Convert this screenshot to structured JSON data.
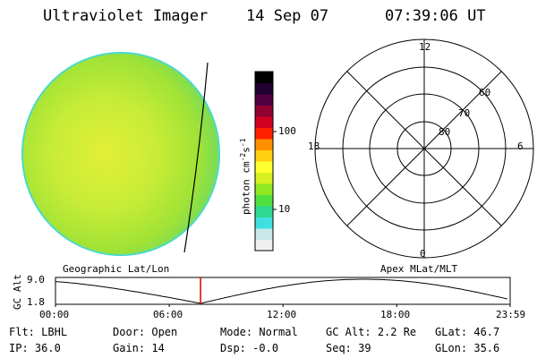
{
  "header": {
    "instrument": "Ultraviolet Imager",
    "date": "14 Sep 07",
    "time": "07:39:06 UT"
  },
  "colorbar": {
    "unit_label": "photon cm",
    "unit_sup1": "-2",
    "unit_s": "s",
    "unit_sup2": "-1",
    "ticks": [
      "100",
      "10"
    ],
    "colors": [
      "#f0f0f0",
      "#c8e8e8",
      "#40e0e0",
      "#30d890",
      "#50e040",
      "#90e820",
      "#d8f020",
      "#ffff30",
      "#ffd010",
      "#ff9000",
      "#ff2000",
      "#d00020",
      "#900030",
      "#500040",
      "#200030",
      "#000000"
    ]
  },
  "polar": {
    "mlt_labels": {
      "top": "12",
      "left": "18",
      "right": "6",
      "bottom": "0"
    },
    "lat_labels": [
      "60",
      "70",
      "80"
    ]
  },
  "timeline": {
    "left_title": "Geographic Lat/Lon",
    "right_title": "Apex MLat/MLT",
    "y_axis_label": "GC Alt",
    "y_ticks": [
      "9.0",
      "1.8"
    ],
    "x_ticks": [
      "00:00",
      "06:00",
      "12:00",
      "18:00",
      "23:59"
    ],
    "marker_time": "07:39",
    "marker_color": "#dd0000"
  },
  "info": {
    "flt_label": "Flt:",
    "flt_value": "LBHL",
    "ip_label": "IP:",
    "ip_value": "36.0",
    "door_label": "Door:",
    "door_value": "Open",
    "gain_label": "Gain:",
    "gain_value": "14",
    "mode_label": "Mode:",
    "mode_value": "Normal",
    "dsp_label": "Dsp:",
    "dsp_value": "-0.0",
    "gcalt_label": "GC Alt:",
    "gcalt_value": "2.2 Re",
    "seq_label": "Seq:",
    "seq_value": "39",
    "glat_label": "GLat:",
    "glat_value": "46.7",
    "glon_label": "GLon:",
    "glon_value": "35.6"
  }
}
